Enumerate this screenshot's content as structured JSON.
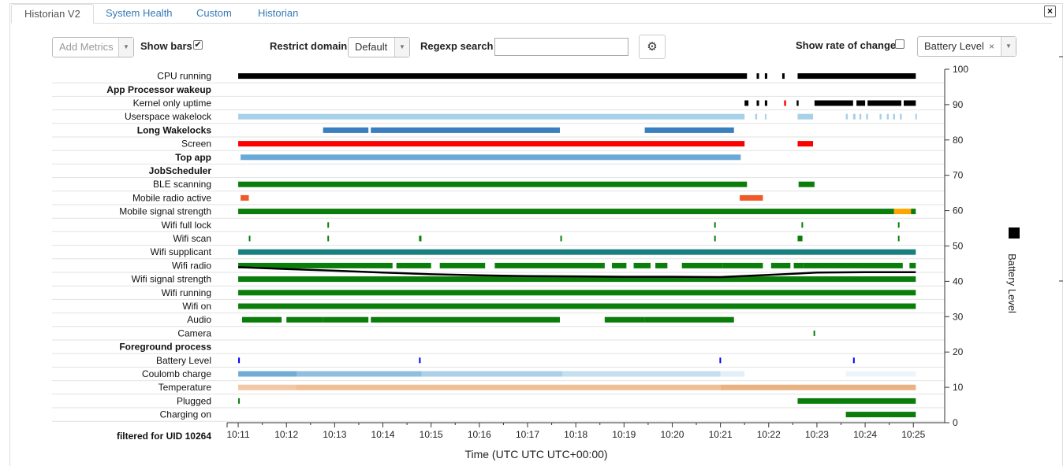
{
  "tabs": [
    {
      "label": "Historian V2",
      "active": true
    },
    {
      "label": "System Health",
      "active": false
    },
    {
      "label": "Custom",
      "active": false
    },
    {
      "label": "Historian",
      "active": false
    }
  ],
  "close_icon": "×",
  "toolbar": {
    "add_metrics": "Add Metrics",
    "show_bars_label": "Show bars",
    "show_bars_checked": "✔",
    "restrict_domain_label": "Restrict domain",
    "domain_value": "Default",
    "regexp_label": "Regexp search",
    "regexp_value": "",
    "gear_icon": "⚙",
    "rate_of_change_label": "Show rate of change",
    "battery_select_value": "Battery Level",
    "battery_select_remove": "×",
    "caret": "▼"
  },
  "chart_data": {
    "type": "timeline",
    "xlabel": "Time (UTC UTC UTC+00:00)",
    "x_ticks": [
      "10:11",
      "10:12",
      "10:13",
      "10:14",
      "10:15",
      "10:16",
      "10:17",
      "10:18",
      "10:19",
      "10:20",
      "10:21",
      "10:22",
      "10:23",
      "10:24",
      "10:25"
    ],
    "x_range": [
      10.77,
      25.65
    ],
    "y2label": "Battery Level",
    "y2_ticks": [
      0,
      10,
      20,
      30,
      40,
      50,
      60,
      70,
      80,
      90,
      100
    ],
    "y2_range": [
      0,
      100
    ],
    "footer_label": "filtered for UID 10264",
    "legend_color": "#000000",
    "rows": [
      {
        "name": "CPU running",
        "bold": false,
        "segments": [
          [
            11.0,
            21.55,
            "#000000"
          ],
          [
            21.75,
            21.8,
            "#000000"
          ],
          [
            21.92,
            21.97,
            "#000000"
          ],
          [
            22.28,
            22.33,
            "#000000"
          ],
          [
            22.6,
            25.05,
            "#000000"
          ]
        ]
      },
      {
        "name": "App Processor wakeup",
        "bold": true,
        "segments": []
      },
      {
        "name": "Kernel only uptime",
        "bold": false,
        "segments": [
          [
            21.5,
            21.58,
            "#000000"
          ],
          [
            21.75,
            21.8,
            "#000000"
          ],
          [
            21.92,
            21.97,
            "#000000"
          ],
          [
            22.32,
            22.36,
            "#ff0000"
          ],
          [
            22.58,
            22.62,
            "#000000"
          ],
          [
            22.95,
            23.75,
            "#000000"
          ],
          [
            23.82,
            24.0,
            "#000000"
          ],
          [
            24.05,
            24.75,
            "#000000"
          ],
          [
            24.8,
            25.05,
            "#000000"
          ]
        ]
      },
      {
        "name": "Userspace wakelock",
        "bold": false,
        "segments": [
          [
            11.0,
            21.5,
            "#a6d1e9"
          ],
          [
            21.72,
            21.76,
            "#a6d1e9"
          ],
          [
            21.92,
            21.95,
            "#a6d1e9"
          ],
          [
            22.6,
            22.92,
            "#a6d1e9"
          ],
          [
            23.6,
            23.64,
            "#a6d1e9"
          ],
          [
            23.75,
            23.8,
            "#a6d1e9"
          ],
          [
            23.88,
            23.92,
            "#a6d1e9"
          ],
          [
            24.02,
            24.06,
            "#a6d1e9"
          ],
          [
            24.3,
            24.34,
            "#a6d1e9"
          ],
          [
            24.45,
            24.49,
            "#a6d1e9"
          ],
          [
            24.58,
            24.62,
            "#a6d1e9"
          ],
          [
            24.72,
            24.76,
            "#a6d1e9"
          ],
          [
            25.04,
            25.07,
            "#a6d1e9"
          ]
        ]
      },
      {
        "name": "Long Wakelocks",
        "bold": true,
        "segments": [
          [
            12.76,
            13.7,
            "#3a7fbf"
          ],
          [
            13.75,
            17.67,
            "#3a7fbf"
          ],
          [
            19.43,
            21.28,
            "#3a7fbf"
          ]
        ]
      },
      {
        "name": "Screen",
        "bold": false,
        "segments": [
          [
            11.0,
            21.5,
            "#ff0000"
          ],
          [
            22.6,
            22.92,
            "#ff0000"
          ]
        ]
      },
      {
        "name": "Top app",
        "bold": true,
        "segments": [
          [
            11.05,
            21.42,
            "#6aaad6"
          ]
        ]
      },
      {
        "name": "JobScheduler",
        "bold": true,
        "segments": []
      },
      {
        "name": "BLE scanning",
        "bold": false,
        "segments": [
          [
            11.0,
            21.55,
            "#0a7d0a"
          ],
          [
            22.62,
            22.95,
            "#0a7d0a"
          ]
        ]
      },
      {
        "name": "Mobile radio active",
        "bold": false,
        "segments": [
          [
            11.05,
            11.22,
            "#f05a28"
          ],
          [
            21.4,
            21.88,
            "#f05a28"
          ]
        ]
      },
      {
        "name": "Mobile signal strength",
        "bold": false,
        "segments": [
          [
            11.0,
            24.6,
            "#0a7d0a"
          ],
          [
            24.6,
            24.95,
            "#ffa500"
          ],
          [
            24.95,
            25.05,
            "#0a7d0a"
          ]
        ]
      },
      {
        "name": "Wifi full lock",
        "bold": false,
        "segments": [
          [
            12.85,
            12.88,
            "#0a7d0a"
          ],
          [
            20.87,
            20.9,
            "#0a7d0a"
          ],
          [
            22.68,
            22.71,
            "#0a7d0a"
          ],
          [
            24.68,
            24.71,
            "#0a7d0a"
          ]
        ]
      },
      {
        "name": "Wifi scan",
        "bold": false,
        "segments": [
          [
            11.22,
            11.25,
            "#0a7d0a"
          ],
          [
            12.85,
            12.88,
            "#0a7d0a"
          ],
          [
            14.75,
            14.8,
            "#0a7d0a"
          ],
          [
            17.68,
            17.71,
            "#0a7d0a"
          ],
          [
            20.87,
            20.9,
            "#0a7d0a"
          ],
          [
            22.6,
            22.7,
            "#0a7d0a"
          ],
          [
            24.68,
            24.71,
            "#0a7d0a"
          ]
        ]
      },
      {
        "name": "Wifi supplicant",
        "bold": false,
        "segments": [
          [
            11.0,
            25.05,
            "#1a7f7f"
          ]
        ]
      },
      {
        "name": "Wifi radio",
        "bold": false,
        "segments": [
          [
            11.0,
            14.2,
            "#0a7d0a"
          ],
          [
            14.28,
            15.0,
            "#0a7d0a"
          ],
          [
            15.18,
            16.12,
            "#0a7d0a"
          ],
          [
            16.32,
            18.6,
            "#0a7d0a"
          ],
          [
            18.75,
            19.05,
            "#0a7d0a"
          ],
          [
            19.2,
            19.55,
            "#0a7d0a"
          ],
          [
            19.65,
            19.9,
            "#0a7d0a"
          ],
          [
            20.2,
            21.05,
            "#0a7d0a"
          ],
          [
            21.05,
            21.88,
            "#0a7d0a"
          ],
          [
            22.05,
            22.45,
            "#0a7d0a"
          ],
          [
            22.52,
            22.72,
            "#0a7d0a"
          ],
          [
            22.72,
            24.78,
            "#0a7d0a"
          ],
          [
            24.92,
            25.05,
            "#0a7d0a"
          ]
        ]
      },
      {
        "name": "Wifi signal strength",
        "bold": false,
        "segments": [
          [
            11.0,
            25.05,
            "#0a7d0a"
          ]
        ]
      },
      {
        "name": "Wifi running",
        "bold": false,
        "segments": [
          [
            11.0,
            25.05,
            "#0a7d0a"
          ]
        ]
      },
      {
        "name": "Wifi on",
        "bold": false,
        "segments": [
          [
            11.0,
            25.05,
            "#0a7d0a"
          ]
        ]
      },
      {
        "name": "Audio",
        "bold": false,
        "segments": [
          [
            11.08,
            11.9,
            "#0a7d0a"
          ],
          [
            12.0,
            12.76,
            "#0a7d0a"
          ],
          [
            12.76,
            13.7,
            "#0a7d0a"
          ],
          [
            13.75,
            17.67,
            "#0a7d0a"
          ],
          [
            18.6,
            19.43,
            "#0a7d0a"
          ],
          [
            19.43,
            21.28,
            "#0a7d0a"
          ]
        ]
      },
      {
        "name": "Camera",
        "bold": false,
        "segments": [
          [
            22.93,
            22.96,
            "#0a7d0a"
          ]
        ]
      },
      {
        "name": "Foreground process",
        "bold": true,
        "segments": []
      },
      {
        "name": "Battery Level",
        "bold": false,
        "segments": [
          [
            11.0,
            11.03,
            "#0000ff"
          ],
          [
            14.75,
            14.78,
            "#0000ff"
          ],
          [
            20.98,
            21.01,
            "#0000ff"
          ],
          [
            23.75,
            23.78,
            "#0000ff"
          ]
        ]
      },
      {
        "name": "Coulomb charge",
        "bold": false,
        "segments": [
          [
            11.0,
            12.22,
            "#72acd5"
          ],
          [
            12.22,
            14.8,
            "#8fbfe0"
          ],
          [
            14.8,
            17.72,
            "#acd0ea"
          ],
          [
            17.72,
            21.0,
            "#c5def0"
          ],
          [
            21.0,
            21.5,
            "#e3eff8"
          ],
          [
            23.6,
            25.05,
            "#eef5fa"
          ]
        ]
      },
      {
        "name": "Temperature",
        "bold": false,
        "segments": [
          [
            11.0,
            12.2,
            "#f2c8a6"
          ],
          [
            12.2,
            21.0,
            "#efbf95"
          ],
          [
            21.0,
            25.05,
            "#e8b283"
          ]
        ]
      },
      {
        "name": "Plugged",
        "bold": false,
        "segments": [
          [
            11.0,
            11.03,
            "#0a7d0a"
          ],
          [
            22.6,
            25.05,
            "#0a7d0a"
          ]
        ]
      },
      {
        "name": "Charging on",
        "bold": false,
        "segments": [
          [
            23.6,
            25.05,
            "#0a7d0a"
          ]
        ]
      }
    ],
    "battery_series": {
      "name": "Battery Level",
      "x": [
        11.0,
        12.0,
        13.0,
        14.0,
        15.0,
        16.0,
        17.0,
        18.0,
        19.0,
        20.0,
        21.0,
        22.0,
        22.6,
        23.0,
        24.0,
        25.05
      ],
      "y": [
        44,
        43.5,
        43,
        42.5,
        42,
        41.7,
        41.5,
        41.4,
        41.3,
        41.3,
        41.2,
        41.8,
        42.2,
        42.5,
        42.6,
        42.6
      ]
    }
  }
}
